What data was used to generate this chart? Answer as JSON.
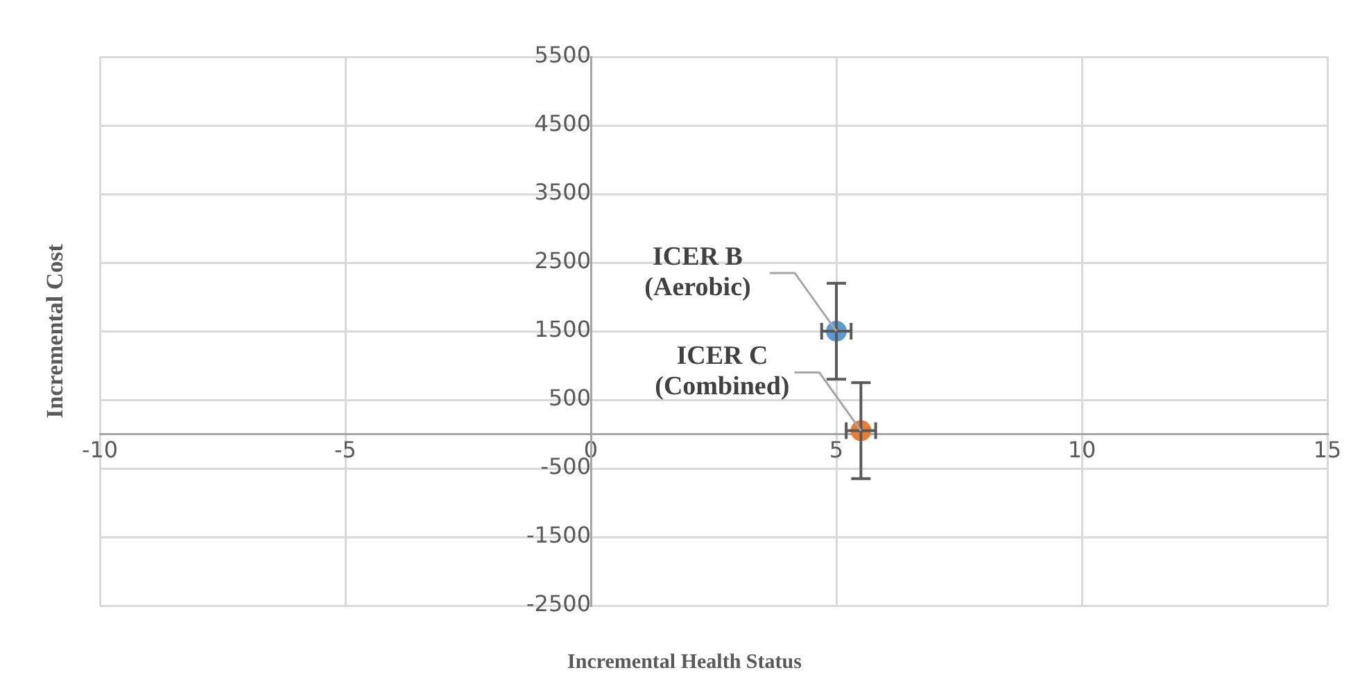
{
  "chart_data": {
    "type": "scatter",
    "xlabel": "Incremental Health Status",
    "ylabel": "Incremental Cost",
    "xlim": [
      -10,
      15
    ],
    "xticks": [
      -10,
      -5,
      0,
      5,
      10,
      15
    ],
    "ylim": [
      -2500,
      5500
    ],
    "yticks": [
      -2500,
      -1500,
      -500,
      500,
      1500,
      2500,
      3500,
      4500,
      5500
    ],
    "series": [
      {
        "color": "#5b9bd5",
        "x": [
          5
        ],
        "values": [
          1500
        ],
        "errors": [
          700
        ],
        "xerrors": [
          0.3
        ]
      },
      {
        "color": "#ed7d31",
        "x": [
          5.5
        ],
        "values": [
          50
        ],
        "errors": [
          [
            -650,
            750
          ]
        ],
        "xerrors": [
          0.3
        ]
      }
    ],
    "annotations": [
      {
        "text": "ICER B\n(Aerobic)",
        "x": 5,
        "y": 1500
      },
      {
        "text": "ICER C\n(Combined)",
        "x": 5.5,
        "y": 50
      }
    ],
    "grid": true,
    "legend": false,
    "marker": "circle"
  }
}
